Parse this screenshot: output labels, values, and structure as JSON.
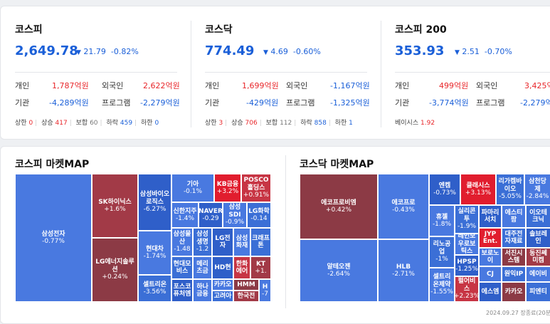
{
  "indices": [
    {
      "title": "코스피",
      "value": "2,649.78",
      "change": "21.79",
      "pct": "-0.82%",
      "r1": {
        "a": "개인",
        "av": "1,787억원",
        "b": "외국인",
        "bv": "2,622억원"
      },
      "r2": {
        "a": "기관",
        "av": "-4,289억원",
        "b": "프로그램",
        "bv": "-2,279억원"
      },
      "mini": {
        "up_lim_l": "상한",
        "up_lim": "0",
        "up_l": "상승",
        "up": "417",
        "flat_l": "보합",
        "flat": "60",
        "down_l": "하락",
        "down": "459",
        "down_lim_l": "하한",
        "down_lim": "0"
      }
    },
    {
      "title": "코스닥",
      "value": "774.49",
      "change": "4.69",
      "pct": "-0.60%",
      "r1": {
        "a": "개인",
        "av": "1,699억원",
        "b": "외국인",
        "bv": "-1,167억원"
      },
      "r2": {
        "a": "기관",
        "av": "-429억원",
        "b": "프로그램",
        "bv": "-1,325억원"
      },
      "mini": {
        "up_lim_l": "상한",
        "up_lim": "3",
        "up_l": "상승",
        "up": "706",
        "flat_l": "보합",
        "flat": "112",
        "down_l": "하락",
        "down": "858",
        "down_lim_l": "하한",
        "down_lim": "1"
      }
    },
    {
      "title": "코스피 200",
      "value": "353.93",
      "change": "2.51",
      "pct": "-0.70%",
      "r1": {
        "a": "개인",
        "av": "499억원",
        "b": "외국인",
        "bv": "3,425억"
      },
      "r2": {
        "a": "기관",
        "av": "-3,774억원",
        "b": "프로그램",
        "bv": "-2,279억"
      },
      "basis_label": "베이시스",
      "basis": "1.92"
    }
  ],
  "maps": {
    "kospi_title": "코스피 마켓MAP",
    "kosdaq_title": "코스닥 마켓MAP",
    "kospi": [
      {
        "n": "삼성전자",
        "p": "-0.77%"
      },
      {
        "n": "SK하이닉스",
        "p": "+1.6%"
      },
      {
        "n": "LG에너지솔루션",
        "p": "+0.24%"
      },
      {
        "n": "삼성바이오로직스",
        "p": "-6.27%"
      },
      {
        "n": "현대차",
        "p": "-1.74%"
      },
      {
        "n": "셀트리온",
        "p": "-3.56%"
      },
      {
        "n": "기아",
        "p": "-0.1%"
      },
      {
        "n": "KB금융",
        "p": "+3.2%"
      },
      {
        "n": "POSCO홀딩스",
        "p": "+0.91%"
      },
      {
        "n": "신한지주",
        "p": "-1.4%"
      },
      {
        "n": "NAVER",
        "p": "-0.29"
      },
      {
        "n": "삼성SDI",
        "p": "-0.9%"
      },
      {
        "n": "LG화학",
        "p": "-0.14"
      },
      {
        "n": "삼성물산",
        "p": "-1.48"
      },
      {
        "n": "삼성생명",
        "p": "-1.2"
      },
      {
        "n": "LG전자",
        "p": ""
      },
      {
        "n": "삼성화재",
        "p": ""
      },
      {
        "n": "크래프톤",
        "p": ""
      },
      {
        "n": "현대모비스",
        "p": ""
      },
      {
        "n": "메리츠금",
        "p": ""
      },
      {
        "n": "HD현",
        "p": ""
      },
      {
        "n": "한화에어",
        "p": ""
      },
      {
        "n": "KT",
        "p": "+1."
      },
      {
        "n": "카카오",
        "p": ""
      },
      {
        "n": "HMM",
        "p": ""
      },
      {
        "n": "포스코퓨처엠",
        "p": ""
      },
      {
        "n": "하나금융",
        "p": ""
      },
      {
        "n": "고려아",
        "p": ""
      },
      {
        "n": "한국전",
        "p": ""
      },
      {
        "n": "H",
        "p": "-7"
      }
    ],
    "kosdaq": [
      {
        "n": "에코프로비엠",
        "p": "+0.42%"
      },
      {
        "n": "알테오젠",
        "p": "-2.64%"
      },
      {
        "n": "에코프로",
        "p": "-0.43%"
      },
      {
        "n": "HLB",
        "p": "-2.71%"
      },
      {
        "n": "엔켐",
        "p": "-0.73%"
      },
      {
        "n": "클래시스",
        "p": "+3.13%"
      },
      {
        "n": "리가켐바이오",
        "p": "-5.05%"
      },
      {
        "n": "삼천당제",
        "p": "-2.84%"
      },
      {
        "n": "휴젤",
        "p": "-1.8%"
      },
      {
        "n": "실리콘투",
        "p": "-1.9%"
      },
      {
        "n": "파마리서치",
        "p": ""
      },
      {
        "n": "에스티팜",
        "p": ""
      },
      {
        "n": "이오테크닉",
        "p": ""
      },
      {
        "n": "JYP Ent.",
        "p": ""
      },
      {
        "n": "대주전자재료",
        "p": ""
      },
      {
        "n": "솔브레인",
        "p": ""
      },
      {
        "n": "리노공업",
        "p": "-1%"
      },
      {
        "n": "레인보우로보틱스",
        "p": ""
      },
      {
        "n": "보로노이",
        "p": ""
      },
      {
        "n": "서진시스템",
        "p": ""
      },
      {
        "n": "동진쎄미켐",
        "p": ""
      },
      {
        "n": "HPSP",
        "p": "-1.25%"
      },
      {
        "n": "CJ",
        "p": ""
      },
      {
        "n": "원익IP",
        "p": ""
      },
      {
        "n": "에이비",
        "p": ""
      },
      {
        "n": "셀트리온제약",
        "p": "-1.55%"
      },
      {
        "n": "펄어비스",
        "p": "+2.23%"
      },
      {
        "n": "에스엠",
        "p": ""
      },
      {
        "n": "카카오",
        "p": ""
      },
      {
        "n": "피엔티",
        "p": ""
      }
    ],
    "timestamp": "2024.09.27 장종료(20분지"
  },
  "colors": {
    "blue": "#1a5fd8",
    "red": "#e8262a"
  }
}
